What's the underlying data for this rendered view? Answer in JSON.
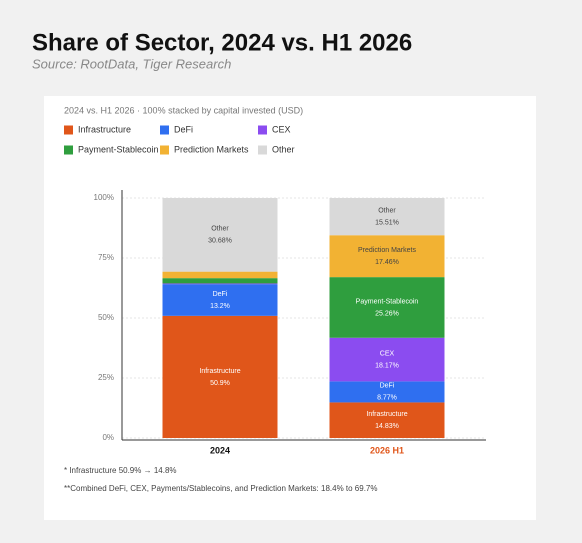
{
  "chart_data": {
    "type": "stacked_bar",
    "title": "Share of Sector, 2024 vs. H1 2026",
    "subtitle": "Source: RootData, Tiger Research",
    "chart_subtitle": "2024 vs. H1 2026 · 100% stacked by capital invested (USD)",
    "categories": [
      "2024",
      "2026 H1"
    ],
    "category_colors": [
      "#111111",
      "#e0561a"
    ],
    "ylim": [
      0,
      100
    ],
    "yticks": [
      {
        "value": 0,
        "label": "0%"
      },
      {
        "value": 25,
        "label": "25%"
      },
      {
        "value": 50,
        "label": "50%"
      },
      {
        "value": 75,
        "label": "75%"
      },
      {
        "value": 100,
        "label": "100%"
      }
    ],
    "grid": true,
    "series": [
      {
        "name": "Infrastructure",
        "color": "#e0561a",
        "values": [
          50.9,
          14.83
        ],
        "value_labels": [
          "50.9%",
          "14.83%"
        ]
      },
      {
        "name": "DeFi",
        "color": "#2f6ff0",
        "values": [
          13.2,
          8.77
        ],
        "value_labels": [
          "13.2%",
          "8.77%"
        ]
      },
      {
        "name": "CEX",
        "color": "#8b4cf0",
        "values": [
          0.3,
          18.17
        ],
        "value_labels": [
          null,
          "18.17%"
        ]
      },
      {
        "name": "Payment-Stablecoin",
        "color": "#2f9e3e",
        "values": [
          2.2,
          25.26
        ],
        "value_labels": [
          null,
          "25.26%"
        ]
      },
      {
        "name": "Prediction Markets",
        "color": "#f2b233",
        "values": [
          2.72,
          17.46
        ],
        "value_labels": [
          null,
          "17.46%"
        ]
      },
      {
        "name": "Other",
        "color": "#d9d9d9",
        "values": [
          30.68,
          15.51
        ],
        "value_labels": [
          "30.68%",
          "15.51%"
        ]
      }
    ],
    "notes": [
      "* Infrastructure 50.9% → 14.8%",
      "**Combined DeFi, CEX, Payments/Stablecoins, and Prediction Markets: 18.4% to 69.7%"
    ]
  }
}
